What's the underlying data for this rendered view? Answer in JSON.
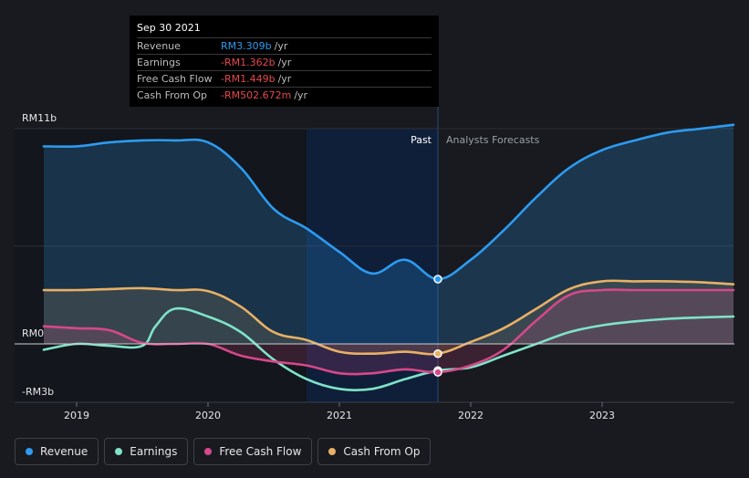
{
  "colors": {
    "revenue": "#2d9bf0",
    "earnings": "#7fe3c8",
    "free_cash_flow": "#d6488a",
    "cash_from_op": "#e8b066",
    "past_shade": "#0f1f3a",
    "grid": "#2c2f36",
    "zero_line": "#d0d0d0"
  },
  "tooltip": {
    "date": "Sep 30 2021",
    "rows": [
      {
        "label": "Revenue",
        "value": "RM3.309b",
        "unit": "/yr",
        "color": "#2d9bf0"
      },
      {
        "label": "Earnings",
        "value": "-RM1.362b",
        "unit": "/yr",
        "color": "#e5484d"
      },
      {
        "label": "Free Cash Flow",
        "value": "-RM1.449b",
        "unit": "/yr",
        "color": "#e5484d"
      },
      {
        "label": "Cash From Op",
        "value": "-RM502.672m",
        "unit": "/yr",
        "color": "#e5484d"
      }
    ]
  },
  "chart_data": {
    "type": "line",
    "title": "",
    "y_tick_labels": [
      "RM11b",
      "RM0",
      "-RM3b"
    ],
    "ylim": [
      -3,
      11
    ],
    "xlim": [
      2018.75,
      2024.0
    ],
    "x_ticks": [
      2019,
      2020,
      2021,
      2022,
      2023
    ],
    "x_tick_labels": [
      "2019",
      "2020",
      "2021",
      "2022",
      "2023"
    ],
    "past_label": "Past",
    "forecast_label": "Analysts Forecasts",
    "past_end": 2021.75,
    "highlight_start": 2020.75,
    "series": [
      {
        "name": "Revenue",
        "key": "revenue",
        "fill": true,
        "x": [
          2018.75,
          2019.0,
          2019.25,
          2019.5,
          2019.75,
          2020.0,
          2020.25,
          2020.5,
          2020.75,
          2021.0,
          2021.25,
          2021.5,
          2021.75,
          2022.0,
          2022.25,
          2022.5,
          2022.75,
          2023.0,
          2023.25,
          2023.5,
          2023.75,
          2024.0
        ],
        "values": [
          10.1,
          10.1,
          10.3,
          10.4,
          10.4,
          10.3,
          9.0,
          6.9,
          5.9,
          4.7,
          3.6,
          4.3,
          3.31,
          4.3,
          5.8,
          7.5,
          9.0,
          9.9,
          10.4,
          10.8,
          11.0,
          11.2
        ]
      },
      {
        "name": "Earnings",
        "key": "earnings",
        "fill": false,
        "x": [
          2018.75,
          2019.0,
          2019.25,
          2019.5,
          2019.6,
          2019.75,
          2020.0,
          2020.25,
          2020.5,
          2020.75,
          2021.0,
          2021.25,
          2021.5,
          2021.75,
          2022.0,
          2022.25,
          2022.5,
          2022.75,
          2023.0,
          2023.25,
          2023.5,
          2023.75,
          2024.0
        ],
        "values": [
          -0.3,
          0.0,
          -0.1,
          -0.1,
          0.9,
          1.8,
          1.4,
          0.6,
          -0.8,
          -1.8,
          -2.3,
          -2.3,
          -1.8,
          -1.36,
          -1.2,
          -0.6,
          0.0,
          0.6,
          0.95,
          1.15,
          1.28,
          1.35,
          1.4
        ]
      },
      {
        "name": "Free Cash Flow",
        "key": "free_cash_flow",
        "fill": true,
        "x": [
          2018.75,
          2019.0,
          2019.25,
          2019.5,
          2019.75,
          2020.0,
          2020.25,
          2020.5,
          2020.75,
          2021.0,
          2021.25,
          2021.5,
          2021.75,
          2022.0,
          2022.25,
          2022.5,
          2022.75,
          2023.0,
          2023.25,
          2023.5,
          2023.75,
          2024.0
        ],
        "values": [
          0.9,
          0.8,
          0.7,
          0.05,
          0.0,
          0.0,
          -0.6,
          -0.9,
          -1.1,
          -1.5,
          -1.5,
          -1.3,
          -1.45,
          -1.1,
          -0.3,
          1.2,
          2.5,
          2.75,
          2.75,
          2.75,
          2.75,
          2.75
        ]
      },
      {
        "name": "Cash From Op",
        "key": "cash_from_op",
        "fill": true,
        "x": [
          2018.75,
          2019.0,
          2019.25,
          2019.5,
          2019.75,
          2020.0,
          2020.25,
          2020.5,
          2020.75,
          2021.0,
          2021.25,
          2021.5,
          2021.75,
          2022.0,
          2022.25,
          2022.5,
          2022.75,
          2023.0,
          2023.25,
          2023.5,
          2023.75,
          2024.0
        ],
        "values": [
          2.75,
          2.75,
          2.8,
          2.85,
          2.75,
          2.7,
          1.9,
          0.6,
          0.2,
          -0.4,
          -0.5,
          -0.4,
          -0.5,
          0.1,
          0.8,
          1.8,
          2.8,
          3.2,
          3.2,
          3.2,
          3.15,
          3.05
        ]
      }
    ],
    "markers": [
      {
        "series": "revenue",
        "x": 2021.75,
        "y": 3.309
      },
      {
        "series": "cash_from_op",
        "x": 2021.75,
        "y": -0.503
      },
      {
        "series": "earnings",
        "x": 2021.75,
        "y": -1.362
      },
      {
        "series": "free_cash_flow",
        "x": 2021.75,
        "y": -1.449
      }
    ],
    "legend": [
      {
        "name": "Revenue",
        "key": "revenue"
      },
      {
        "name": "Earnings",
        "key": "earnings"
      },
      {
        "name": "Free Cash Flow",
        "key": "free_cash_flow"
      },
      {
        "name": "Cash From Op",
        "key": "cash_from_op"
      }
    ]
  }
}
